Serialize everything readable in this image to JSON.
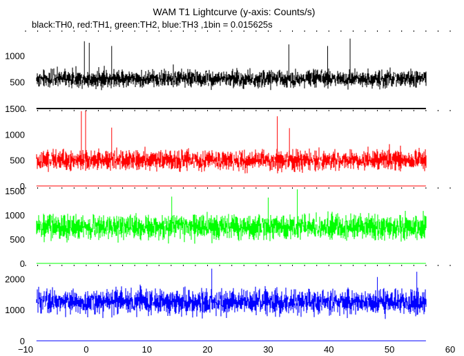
{
  "chart_data": {
    "type": "line",
    "title": "WAM T1 Lightcurve (y-axis: Counts/s)",
    "subtitle": "black:TH0, red:TH1, green:TH2, blue:TH3 ,1bin = 0.015625s",
    "xlim": [
      -10,
      60
    ],
    "x_ticks": [
      "−10",
      "0",
      "10",
      "20",
      "30",
      "40",
      "50",
      "60"
    ],
    "x_data_range": [
      -8.2,
      56.0
    ],
    "grid": false,
    "panels": [
      {
        "series": "TH0",
        "color": "#000000",
        "ylim": [
          0,
          1500
        ],
        "y_ticks": [
          500,
          1000
        ],
        "y_tick_labels": [
          "500",
          "1000"
        ],
        "mean": 560,
        "noise_halfwidth": 170,
        "spikes": [
          {
            "x": -0.3,
            "y": 1270
          },
          {
            "x": 0.5,
            "y": 1240
          },
          {
            "x": 4.2,
            "y": 1180
          },
          {
            "x": 33.4,
            "y": 1210
          },
          {
            "x": 39.8,
            "y": 1180
          },
          {
            "x": 43.5,
            "y": 1320
          }
        ]
      },
      {
        "series": "TH1",
        "color": "#ff0000",
        "ylim": [
          0,
          1500
        ],
        "y_ticks": [
          0,
          500,
          1000,
          1500
        ],
        "y_tick_labels": [
          "0",
          "500",
          "1000",
          "1500"
        ],
        "mean": 500,
        "noise_halfwidth": 200,
        "spikes": [
          {
            "x": -0.8,
            "y": 1450
          },
          {
            "x": -0.1,
            "y": 1460
          },
          {
            "x": 4.2,
            "y": 1130
          },
          {
            "x": 31.5,
            "y": 1350
          },
          {
            "x": 33.5,
            "y": 1120
          }
        ]
      },
      {
        "series": "TH2",
        "color": "#00ff00",
        "ylim": [
          0,
          1600
        ],
        "y_ticks": [
          0,
          500,
          1000,
          1500
        ],
        "y_tick_labels": [
          "0",
          "500",
          "1000",
          "1500"
        ],
        "mean": 750,
        "noise_halfwidth": 260,
        "spikes": [
          {
            "x": 34.8,
            "y": 1530
          },
          {
            "x": 30.0,
            "y": 1360
          },
          {
            "x": 14.1,
            "y": 1380
          }
        ]
      },
      {
        "series": "TH3",
        "color": "#0000ff",
        "ylim": [
          0,
          2500
        ],
        "y_ticks": [
          0,
          1000,
          2000
        ],
        "y_tick_labels": [
          "0",
          "1000",
          "2000"
        ],
        "mean": 1250,
        "noise_halfwidth": 420,
        "spikes": [
          {
            "x": 20.7,
            "y": 2330
          },
          {
            "x": 54.5,
            "y": 2230
          },
          {
            "x": 48.0,
            "y": 2060
          }
        ]
      }
    ]
  }
}
